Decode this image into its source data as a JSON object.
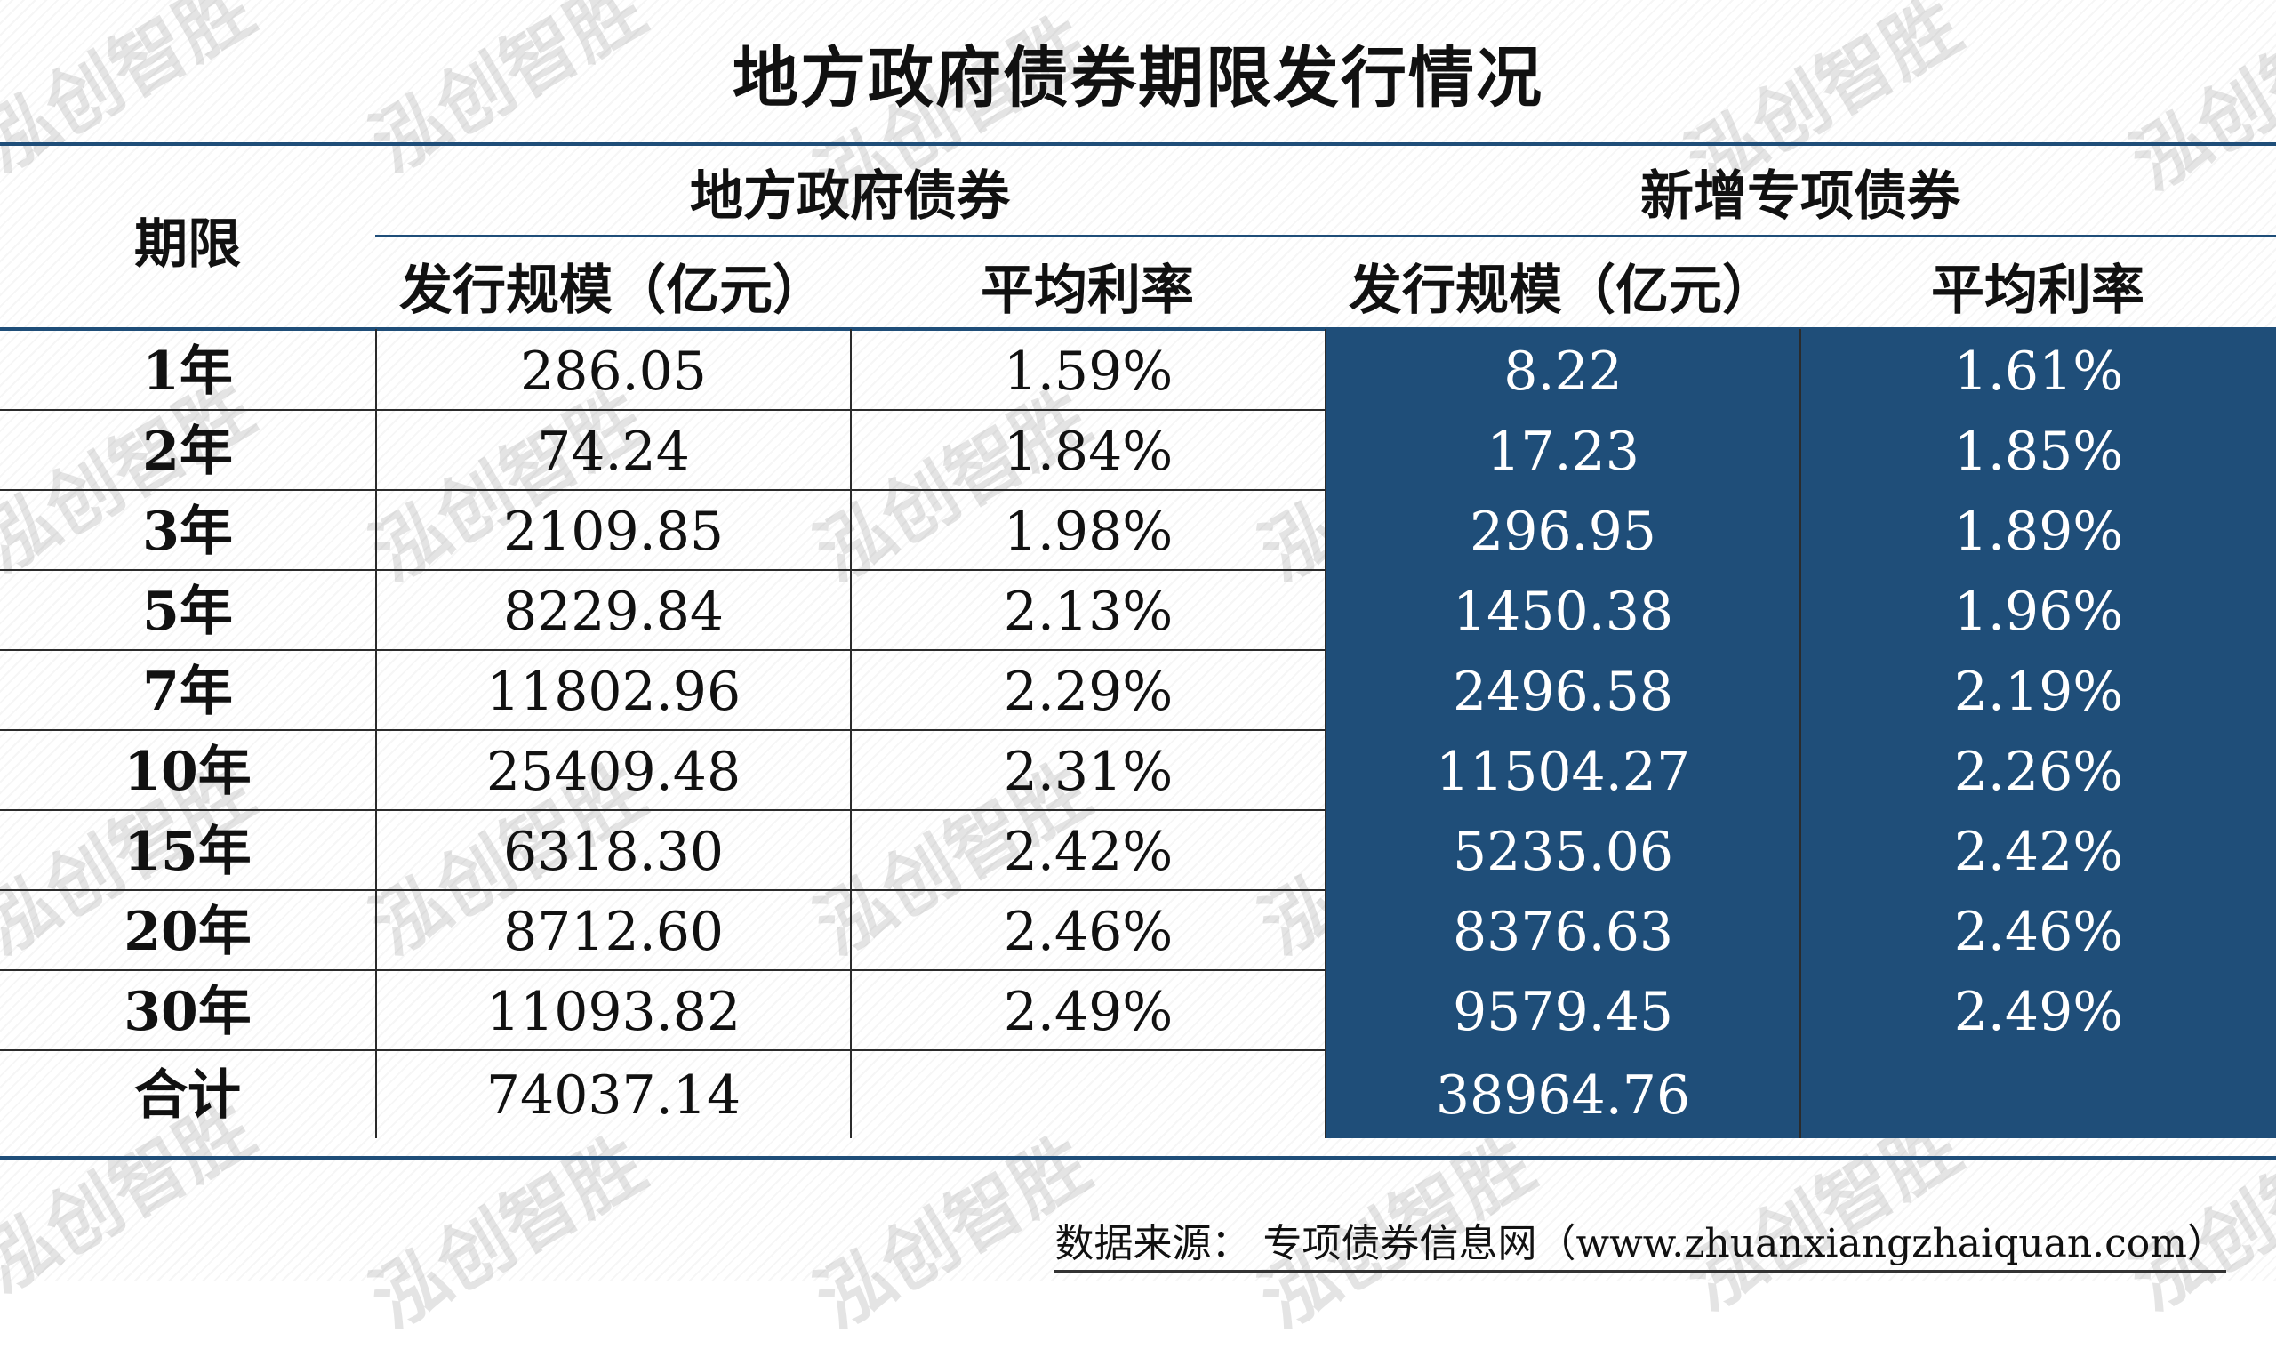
{
  "title": "地方政府债券期限发行情况",
  "headers": {
    "term": "期限",
    "group_local": "地方政府债券",
    "group_special": "新增专项债券",
    "scale": "发行规模（亿元）",
    "rate": "平均利率"
  },
  "rows": [
    {
      "term": "1年",
      "lg_scale": "286.05",
      "lg_rate": "1.59%",
      "sp_scale": "8.22",
      "sp_rate": "1.61%"
    },
    {
      "term": "2年",
      "lg_scale": "74.24",
      "lg_rate": "1.84%",
      "sp_scale": "17.23",
      "sp_rate": "1.85%"
    },
    {
      "term": "3年",
      "lg_scale": "2109.85",
      "lg_rate": "1.98%",
      "sp_scale": "296.95",
      "sp_rate": "1.89%"
    },
    {
      "term": "5年",
      "lg_scale": "8229.84",
      "lg_rate": "2.13%",
      "sp_scale": "1450.38",
      "sp_rate": "1.96%"
    },
    {
      "term": "7年",
      "lg_scale": "11802.96",
      "lg_rate": "2.29%",
      "sp_scale": "2496.58",
      "sp_rate": "2.19%"
    },
    {
      "term": "10年",
      "lg_scale": "25409.48",
      "lg_rate": "2.31%",
      "sp_scale": "11504.27",
      "sp_rate": "2.26%"
    },
    {
      "term": "15年",
      "lg_scale": "6318.30",
      "lg_rate": "2.42%",
      "sp_scale": "5235.06",
      "sp_rate": "2.42%"
    },
    {
      "term": "20年",
      "lg_scale": "8712.60",
      "lg_rate": "2.46%",
      "sp_scale": "8376.63",
      "sp_rate": "2.46%"
    },
    {
      "term": "30年",
      "lg_scale": "11093.82",
      "lg_rate": "2.49%",
      "sp_scale": "9579.45",
      "sp_rate": "2.49%"
    }
  ],
  "total": {
    "term": "合计",
    "lg_scale": "74037.14",
    "lg_rate": "",
    "sp_scale": "38964.76",
    "sp_rate": ""
  },
  "source": "数据来源： 专项债券信息网（www.zhuanxiangzhaiquan.com）",
  "watermark": "泓创智胜",
  "colors": {
    "accent": "#1f4e79",
    "text": "#111111",
    "highlight_text": "#ffffff"
  }
}
